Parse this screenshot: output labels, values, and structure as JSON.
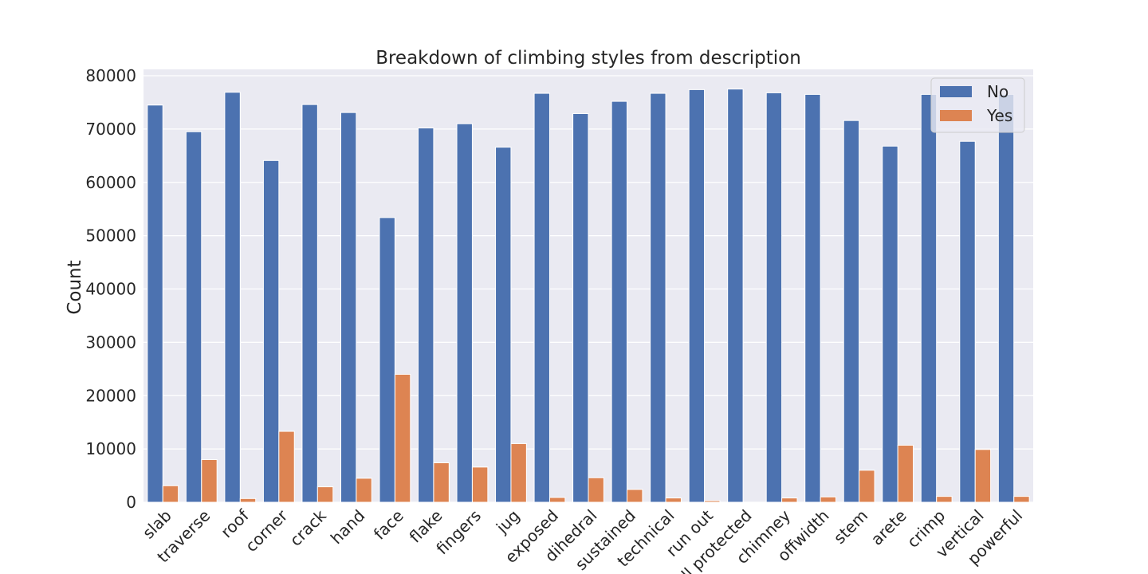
{
  "chart_data": {
    "type": "bar",
    "title": "Breakdown of climbing styles from description",
    "xlabel": "",
    "ylabel": "Count",
    "ylim": [
      0,
      80000
    ],
    "yticks": [
      0,
      10000,
      20000,
      30000,
      40000,
      50000,
      60000,
      70000,
      80000
    ],
    "grid": true,
    "legend_placement": "top-right",
    "categories": [
      "slab",
      "traverse",
      "roof",
      "corner",
      "crack",
      "hand",
      "face",
      "flake",
      "fingers",
      "jug",
      "exposed",
      "dihedral",
      "sustained",
      "technical",
      "run out",
      "well protected",
      "chimney",
      "offwidth",
      "stem",
      "arete",
      "crimp",
      "vertical",
      "powerful"
    ],
    "series": [
      {
        "name": "No",
        "color": "#4c72b0",
        "values": [
          74500,
          69500,
          76900,
          64100,
          74600,
          73100,
          53400,
          70200,
          71000,
          66600,
          76700,
          72900,
          75200,
          76700,
          77400,
          77500,
          76800,
          76500,
          71600,
          66800,
          76500,
          67700,
          76500
        ]
      },
      {
        "name": "Yes",
        "color": "#dd8452",
        "values": [
          3100,
          8000,
          700,
          13300,
          2900,
          4500,
          24000,
          7400,
          6600,
          11000,
          900,
          4600,
          2400,
          800,
          300,
          0,
          800,
          1000,
          6000,
          10700,
          1100,
          9900,
          1100
        ]
      }
    ]
  }
}
